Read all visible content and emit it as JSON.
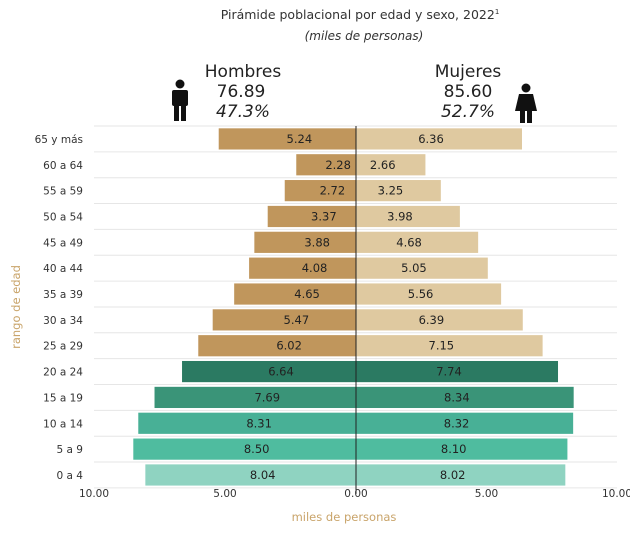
{
  "chart_data": {
    "type": "bar",
    "title": "Pirámide poblacional por edad y sexo, 2022",
    "title_sup": "1",
    "subtitle": "(miles de personas)",
    "xlabel": "miles de personas",
    "ylabel": "rango de edad",
    "xlim": [
      -10,
      10
    ],
    "x_ticks": [
      "10.00",
      "5.00",
      "0.00",
      "5.00",
      "10.00"
    ],
    "categories": [
      "65 y más",
      "60 a 64",
      "55 a 59",
      "50 a 54",
      "45 a 49",
      "40 a 44",
      "35 a 39",
      "30 a 34",
      "25 a 29",
      "20 a 24",
      "15 a 19",
      "10 a 14",
      "5 a 9",
      "0 a 4"
    ],
    "series": [
      {
        "name": "Hombres",
        "total": "76.89",
        "share": "47.3%",
        "values": [
          5.24,
          2.28,
          2.72,
          3.37,
          3.88,
          4.08,
          4.65,
          5.47,
          6.02,
          6.64,
          7.69,
          8.31,
          8.5,
          8.04
        ],
        "labels": [
          "5.24",
          "2.28",
          "2.72",
          "3.37",
          "3.88",
          "4.08",
          "4.65",
          "5.47",
          "6.02",
          "6.64",
          "7.69",
          "8.31",
          "8.50",
          "8.04"
        ],
        "colors": [
          "#c0965c",
          "#c0965c",
          "#c0965c",
          "#c0965c",
          "#c0965c",
          "#c0965c",
          "#c0965c",
          "#c0965c",
          "#c0965c",
          "#2b7a62",
          "#3a9478",
          "#48b096",
          "#4fbc9f",
          "#8fd3c1"
        ]
      },
      {
        "name": "Mujeres",
        "total": "85.60",
        "share": "52.7%",
        "values": [
          6.36,
          2.66,
          3.25,
          3.98,
          4.68,
          5.05,
          5.56,
          6.39,
          7.15,
          7.74,
          8.34,
          8.32,
          8.1,
          8.02
        ],
        "labels": [
          "6.36",
          "2.66",
          "3.25",
          "3.98",
          "4.68",
          "5.05",
          "5.56",
          "6.39",
          "7.15",
          "7.74",
          "8.34",
          "8.32",
          "8.10",
          "8.02"
        ],
        "colors": [
          "#dfc9a0",
          "#dfc9a0",
          "#dfc9a0",
          "#dfc9a0",
          "#dfc9a0",
          "#dfc9a0",
          "#dfc9a0",
          "#dfc9a0",
          "#dfc9a0",
          "#2b7a62",
          "#3a9478",
          "#48b096",
          "#4fbc9f",
          "#8fd3c1"
        ]
      }
    ],
    "grid": true,
    "icons": [
      "male-person-icon",
      "female-person-icon"
    ]
  }
}
